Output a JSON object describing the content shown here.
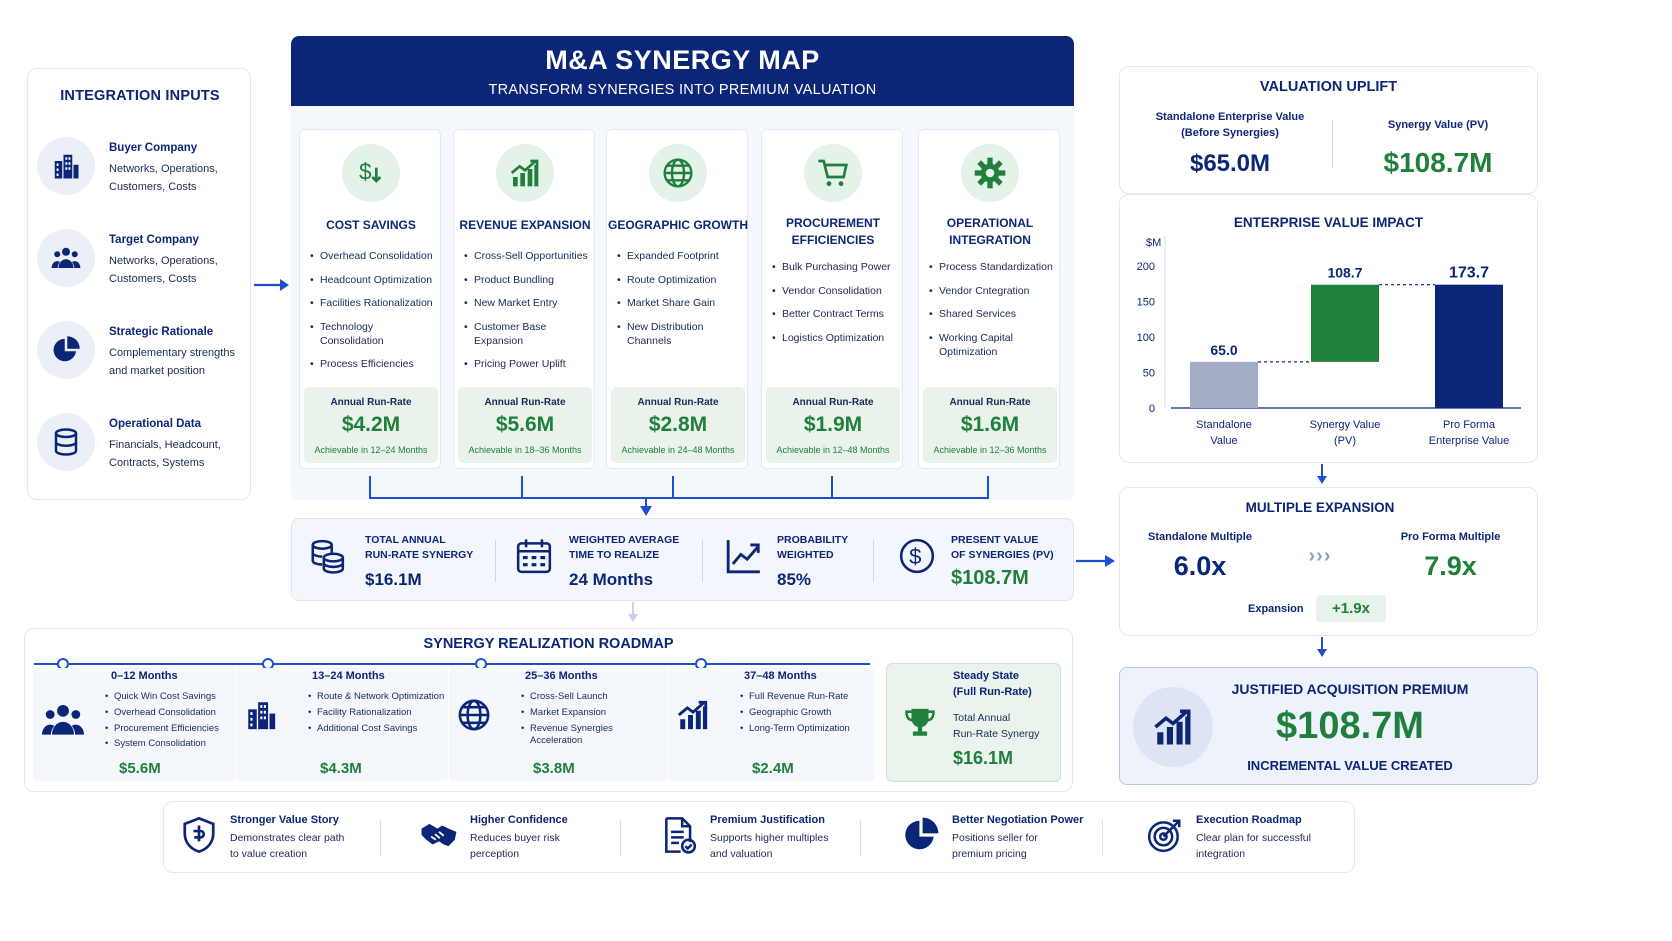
{
  "header": {
    "title": "M&A SYNERGY MAP",
    "subtitle": "TRANSFORM SYNERGIES INTO PREMIUM VALUATION"
  },
  "inputs": {
    "title": "INTEGRATION INPUTS",
    "items": [
      {
        "name": "Buyer Company",
        "line1": "Networks, Operations,",
        "line2": "Customers, Costs",
        "icon": "buildings-icon"
      },
      {
        "name": "Target Company",
        "line1": "Networks, Operations,",
        "line2": "Customers, Costs",
        "icon": "people-icon"
      },
      {
        "name": "Strategic Rationale",
        "line1": "Complementary strengths",
        "line2": "and market position",
        "icon": "pie-chart-icon"
      },
      {
        "name": "Operational Data",
        "line1": "Financials, Headcount,",
        "line2": "Contracts, Systems",
        "icon": "database-icon"
      }
    ]
  },
  "synergies": [
    {
      "title1": "COST SAVINGS",
      "title2": "",
      "icon": "dollar-down-icon",
      "items": [
        "Overhead Consolidation",
        "Headcount Optimization",
        "Facilities Rationalization",
        "Technology Consolidation",
        "Process Efficiencies"
      ],
      "rr_label": "Annual Run-Rate",
      "value": "$4.2M",
      "achievable": "Achievable in 12–24 Months"
    },
    {
      "title1": "REVENUE EXPANSION",
      "title2": "",
      "icon": "bar-growth-icon",
      "items": [
        "Cross-Sell Opportunities",
        "Product Bundling",
        "New Market Entry",
        "Customer Base Expansion",
        "Pricing Power Uplift"
      ],
      "rr_label": "Annual Run-Rate",
      "value": "$5.6M",
      "achievable": "Achievable in 18–36 Months"
    },
    {
      "title1": "GEOGRAPHIC GROWTH",
      "title2": "",
      "icon": "globe-icon",
      "items": [
        "Expanded Footprint",
        "Route Optimization",
        "Market Share Gain",
        "New Distribution Channels"
      ],
      "rr_label": "Annual Run-Rate",
      "value": "$2.8M",
      "achievable": "Achievable in 24–48 Months"
    },
    {
      "title1": "PROCUREMENT",
      "title2": "EFFICIENCIES",
      "icon": "cart-icon",
      "items": [
        "Bulk Purchasing Power",
        "Vendor Consolidation",
        "Better Contract Terms",
        "Logistics Optimization"
      ],
      "rr_label": "Annual Run-Rate",
      "value": "$1.9M",
      "achievable": "Achievable in 12–48 Months"
    },
    {
      "title1": "OPERATIONAL",
      "title2": "INTEGRATION",
      "icon": "gear-icon",
      "items": [
        "Process Standardization",
        "Vendor Cntegration",
        "Shared Services",
        "Working Capital Optimization"
      ],
      "rr_label": "Annual Run-Rate",
      "value": "$1.6M",
      "achievable": "Achievable in 12–36 Months"
    }
  ],
  "summary": [
    {
      "l1": "TOTAL ANNUAL",
      "l2": "RUN-RATE SYNERGY",
      "value": "$16.1M",
      "icon": "coins-icon"
    },
    {
      "l1": "WEIGHTED AVERAGE",
      "l2": "TIME TO REALIZE",
      "value": "24 Months",
      "icon": "calendar-icon"
    },
    {
      "l1": "PROBABILITY",
      "l2": "WEIGHTED",
      "value": "85%",
      "icon": "trend-icon"
    },
    {
      "l1": "PRESENT VALUE",
      "l2": "OF SYNERGIES (PV)",
      "value": "$108.7M",
      "icon": "dollar-circle-icon"
    }
  ],
  "roadmap": {
    "title": "SYNERGY REALIZATION ROADMAP",
    "phases": [
      {
        "period": "0–12 Months",
        "items": [
          "Quick Win Cost Savings",
          "Overhead Consolidation",
          "Procurement Efficiencies",
          "System Consolidation"
        ],
        "value": "$5.6M",
        "icon": "people-icon"
      },
      {
        "period": "13–24 Months",
        "items": [
          "Route & Network Optimization",
          "Facility Rationalization",
          "Additional Cost Savings"
        ],
        "value": "$4.3M",
        "icon": "buildings-icon"
      },
      {
        "period": "25–36 Months",
        "items": [
          "Cross-Sell Launch",
          "Market Expansion",
          "Revenue Synergies Acceleration"
        ],
        "value": "$3.8M",
        "icon": "globe-icon"
      },
      {
        "period": "37–48 Months",
        "items": [
          "Full Revenue Run-Rate",
          "Geographic Growth",
          "Long-Term Optimization"
        ],
        "value": "$2.4M",
        "icon": "bar-growth-icon"
      }
    ],
    "steady": {
      "l1": "Steady State",
      "l2": "(Full Run-Rate)",
      "d1": "Total Annual",
      "d2": "Run-Rate Synergy",
      "value": "$16.1M"
    }
  },
  "valuation": {
    "title": "VALUATION UPLIFT",
    "standalone_label1": "Standalone Enterprise Value",
    "standalone_label2": "(Before Synergies)",
    "standalone_value": "$65.0M",
    "synergy_label": "Synergy Value (PV)",
    "synergy_value": "$108.7M"
  },
  "chart_data": {
    "type": "bar",
    "title": "ENTERPRISE VALUE IMPACT",
    "ylabel": "$M",
    "ylim": [
      0,
      200
    ],
    "yticks": [
      0,
      50,
      100,
      150,
      200
    ],
    "categories": [
      [
        "Standalone",
        "Value"
      ],
      [
        "Synergy Value",
        "(PV)"
      ],
      [
        "Pro Forma",
        "Enterprise Value"
      ]
    ],
    "values": [
      65.0,
      108.7,
      173.7
    ],
    "bases": [
      0,
      65.0,
      0
    ],
    "labels": [
      "65.0",
      "108.7",
      "173.7"
    ],
    "colors": [
      "#a3aec6",
      "#1f7f3b",
      "#0c2677"
    ]
  },
  "multiple": {
    "title": "MULTIPLE EXPANSION",
    "standalone_label": "Standalone Multiple",
    "standalone_value": "6.0x",
    "proforma_label": "Pro Forma Multiple",
    "proforma_value": "7.9x",
    "chevrons": "›››",
    "expansion_label": "Expansion",
    "expansion_value": "+1.9x"
  },
  "premium": {
    "title": "JUSTIFIED ACQUISITION PREMIUM",
    "value": "$108.7M",
    "subtitle": "INCREMENTAL VALUE CREATED"
  },
  "benefits": [
    {
      "title": "Stronger Value Story",
      "l1": "Demonstrates clear path",
      "l2": "to value creation",
      "icon": "shield-icon"
    },
    {
      "title": "Higher Confidence",
      "l1": "Reduces buyer risk",
      "l2": "perception",
      "icon": "handshake-icon"
    },
    {
      "title": "Premium Justification",
      "l1": "Supports higher multiples",
      "l2": "and valuation",
      "icon": "document-check-icon"
    },
    {
      "title": "Better Negotiation Power",
      "l1": "Positions seller for",
      "l2": "premium pricing",
      "icon": "pie-chart-icon"
    },
    {
      "title": "Execution Roadmap",
      "l1": "Clear plan for successful",
      "l2": "integration",
      "icon": "target-icon"
    }
  ],
  "colors": {
    "navy": "#0c2677",
    "green": "#1f7f3b",
    "light_green": "#e6f3ea",
    "tint": "#f3f6fc",
    "arrow": "#1f4fcf"
  }
}
